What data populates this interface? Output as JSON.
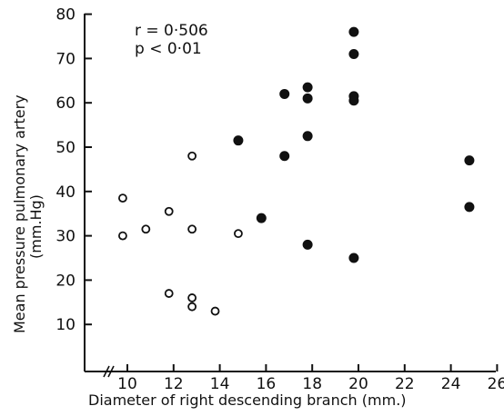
{
  "chart_data": {
    "type": "scatter",
    "title": "",
    "xlabel": "Diameter of right descending branch  (mm.)",
    "ylabel_line1": "Mean pressure pulmonary artery",
    "ylabel_line2": "(mm.Hg)",
    "xlim": [
      9,
      26
    ],
    "ylim": [
      0,
      80
    ],
    "x_ticks": [
      10,
      12,
      14,
      16,
      18,
      20,
      22,
      24,
      26
    ],
    "y_ticks": [
      10,
      20,
      30,
      40,
      50,
      60,
      70,
      80
    ],
    "x_axis_break": true,
    "grid": false,
    "annotations": [
      "r = 0·506",
      "p < 0·01"
    ],
    "series": [
      {
        "marker": "open-circle",
        "points": [
          {
            "x": 9.8,
            "y": 38.5
          },
          {
            "x": 9.8,
            "y": 30.0
          },
          {
            "x": 10.8,
            "y": 31.5
          },
          {
            "x": 11.8,
            "y": 35.5
          },
          {
            "x": 12.8,
            "y": 48.0
          },
          {
            "x": 12.8,
            "y": 31.5
          },
          {
            "x": 14.8,
            "y": 30.5
          },
          {
            "x": 11.8,
            "y": 17.0
          },
          {
            "x": 12.8,
            "y": 16.0
          },
          {
            "x": 12.8,
            "y": 14.0
          },
          {
            "x": 13.8,
            "y": 13.0
          }
        ]
      },
      {
        "marker": "filled-circle",
        "points": [
          {
            "x": 14.8,
            "y": 51.5
          },
          {
            "x": 15.8,
            "y": 34.0
          },
          {
            "x": 16.8,
            "y": 62.0
          },
          {
            "x": 16.8,
            "y": 48.0
          },
          {
            "x": 17.8,
            "y": 63.5
          },
          {
            "x": 17.8,
            "y": 61.0
          },
          {
            "x": 17.8,
            "y": 52.5
          },
          {
            "x": 17.8,
            "y": 28.0
          },
          {
            "x": 19.8,
            "y": 76.0
          },
          {
            "x": 19.8,
            "y": 71.0
          },
          {
            "x": 19.8,
            "y": 61.5
          },
          {
            "x": 19.8,
            "y": 60.5
          },
          {
            "x": 19.8,
            "y": 25.0
          },
          {
            "x": 24.8,
            "y": 47.0
          },
          {
            "x": 24.8,
            "y": 36.5
          }
        ]
      }
    ]
  }
}
